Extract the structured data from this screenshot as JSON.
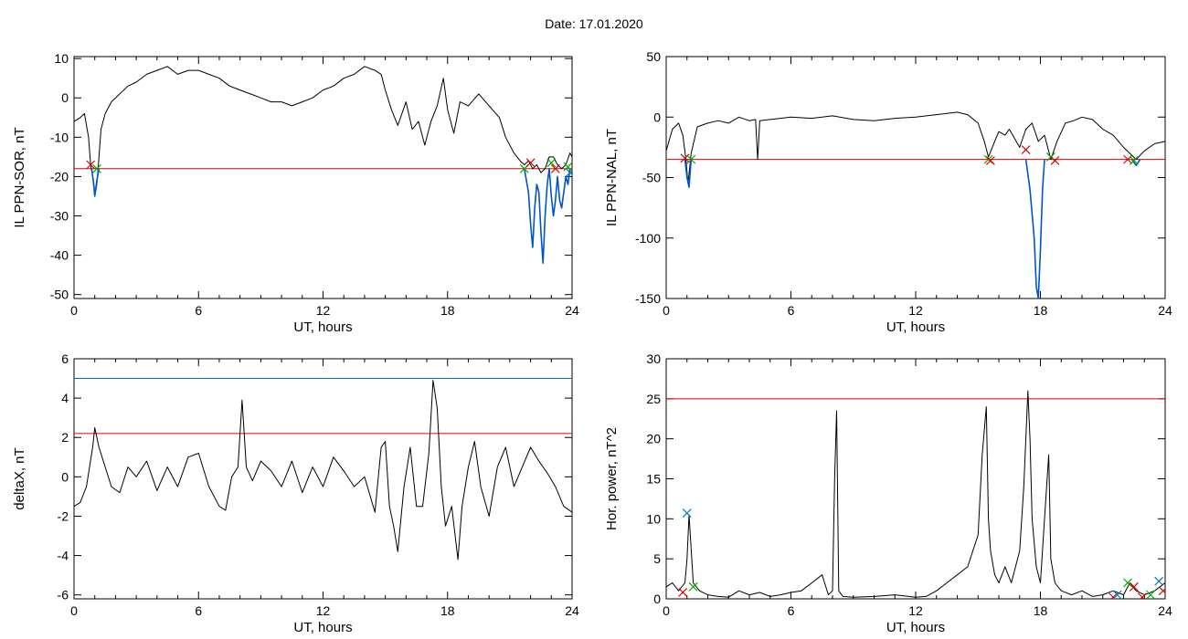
{
  "page": {
    "title": "Date:  17.01.2020"
  },
  "colors": {
    "signal": "#000000",
    "threshold_red": "#dd0000",
    "threshold_blue": "#0066cc",
    "segment_blue": "#0055cc",
    "marker_red": "#dd0000",
    "marker_green": "#00aa00",
    "marker_blue": "#0077cc"
  },
  "chart_data": [
    {
      "type": "line",
      "xlabel": "UT, hours",
      "ylabel": "IL PPN-SOR, nT",
      "xlim": [
        0,
        24
      ],
      "ylim": [
        -51,
        10.5
      ],
      "xticks": [
        "0",
        "6",
        "12",
        "18",
        "24"
      ],
      "yticks": [
        "10",
        "0",
        "-10",
        "-20",
        "-30",
        "-40",
        "-50"
      ],
      "ytick_values": [
        10,
        0,
        -10,
        -20,
        -30,
        -40,
        -50
      ],
      "thresholds": [
        {
          "y": -18,
          "color": "red"
        }
      ],
      "series": [
        {
          "color": "black",
          "x": [
            0,
            0.3,
            0.5,
            0.7,
            0.8,
            0.9,
            1.0,
            1.1,
            1.2,
            1.3,
            1.5,
            1.8,
            2.2,
            2.6,
            3.0,
            3.5,
            4.0,
            4.5,
            5.0,
            5.5,
            6.0,
            6.5,
            7.0,
            7.5,
            8.0,
            8.5,
            9.0,
            9.5,
            10.0,
            10.5,
            11.0,
            11.5,
            12.0,
            12.5,
            13.0,
            13.5,
            14.0,
            14.5,
            14.8,
            15.0,
            15.3,
            15.6,
            16.0,
            16.3,
            16.6,
            16.9,
            17.2,
            17.5,
            17.8,
            18.0,
            18.3,
            18.6,
            19.0,
            19.5,
            20.0,
            20.5,
            20.8,
            21.2,
            21.5,
            21.7,
            21.9,
            22.1,
            22.3,
            22.5,
            22.7,
            22.9,
            23.1,
            23.3,
            23.5,
            23.7,
            23.9,
            24.0
          ],
          "y": [
            -6,
            -5,
            -4,
            -10,
            -17,
            -20,
            -25,
            -22,
            -15,
            -8,
            -4,
            -1,
            1,
            3,
            4,
            6,
            7,
            8,
            6,
            7,
            7,
            6,
            5,
            3,
            2,
            1,
            0,
            -1,
            -1,
            -2,
            -1,
            0,
            2,
            3,
            5,
            6,
            8,
            7,
            6,
            2,
            -3,
            -7,
            -1,
            -8,
            -6,
            -12,
            -6,
            -2,
            5,
            -3,
            -9,
            -1,
            -2,
            1,
            -2,
            -5,
            -10,
            -14,
            -16,
            -17,
            -16,
            -18,
            -17,
            -19,
            -18,
            -15,
            -15,
            -17,
            -18,
            -17,
            -14,
            -15
          ]
        },
        {
          "color": "blue",
          "x": [
            0.85,
            0.95,
            1.0,
            1.1,
            1.2
          ],
          "y": [
            -18,
            -22,
            -25,
            -21,
            -18
          ]
        },
        {
          "color": "blue",
          "x": [
            21.7,
            21.9,
            22.0,
            22.1,
            22.2,
            22.3,
            22.4,
            22.5,
            22.6,
            22.7,
            22.8,
            22.9,
            23.0,
            23.1,
            23.2,
            23.3,
            23.4,
            23.5,
            23.6,
            23.7,
            23.8,
            23.9
          ],
          "y": [
            -18,
            -24,
            -32,
            -38,
            -28,
            -22,
            -24,
            -34,
            -42,
            -30,
            -22,
            -18,
            -25,
            -30,
            -26,
            -20,
            -26,
            -28,
            -24,
            -20,
            -22,
            -18
          ]
        }
      ],
      "markers": [
        {
          "x": 0.8,
          "y": -17,
          "color": "red"
        },
        {
          "x": 1.1,
          "y": -18,
          "color": "green"
        },
        {
          "x": 21.7,
          "y": -18,
          "color": "green"
        },
        {
          "x": 22.0,
          "y": -16.5,
          "color": "red"
        },
        {
          "x": 23.0,
          "y": -16.5,
          "color": "green"
        },
        {
          "x": 23.2,
          "y": -18,
          "color": "red"
        },
        {
          "x": 23.8,
          "y": -17.5,
          "color": "green"
        },
        {
          "x": 23.9,
          "y": -19,
          "color": "blue"
        }
      ]
    },
    {
      "type": "line",
      "xlabel": "UT, hours",
      "ylabel": "IL PPN-NAL, nT",
      "xlim": [
        0,
        24
      ],
      "ylim": [
        -150,
        50
      ],
      "xticks": [
        "0",
        "6",
        "12",
        "18",
        "24"
      ],
      "yticks": [
        "50",
        "0",
        "-50",
        "-100",
        "-150"
      ],
      "ytick_values": [
        50,
        0,
        -50,
        -100,
        -150
      ],
      "thresholds": [
        {
          "y": -35,
          "color": "red"
        }
      ],
      "series": [
        {
          "color": "black",
          "x": [
            0,
            0.3,
            0.6,
            0.8,
            0.95,
            1.05,
            1.2,
            1.5,
            2.0,
            2.5,
            3.0,
            3.5,
            4.0,
            4.3,
            4.4,
            4.5,
            5.0,
            5.5,
            6.0,
            7.0,
            8.0,
            9.0,
            10.0,
            11.0,
            12.0,
            13.0,
            14.0,
            14.5,
            15.0,
            15.3,
            15.5,
            15.8,
            16.0,
            16.3,
            16.5,
            17.0,
            17.3,
            17.6,
            17.9,
            18.2,
            18.5,
            18.8,
            19.2,
            19.6,
            20.0,
            20.5,
            21.0,
            21.5,
            22.0,
            22.3,
            22.6,
            23.0,
            23.5,
            24.0
          ],
          "y": [
            -28,
            -10,
            -5,
            -15,
            -35,
            -55,
            -30,
            -8,
            -5,
            -3,
            -5,
            0,
            -3,
            -2,
            -35,
            -3,
            -2,
            -1,
            0,
            -1,
            1,
            -2,
            -3,
            -1,
            0,
            2,
            4,
            2,
            -5,
            -20,
            -33,
            -20,
            -12,
            -15,
            -10,
            -25,
            -10,
            -5,
            -20,
            -15,
            -35,
            -20,
            -5,
            -3,
            0,
            -2,
            -10,
            -15,
            -25,
            -30,
            -35,
            -28,
            -22,
            -20
          ]
        },
        {
          "color": "blue",
          "x": [
            17.3,
            17.5,
            17.7,
            17.8,
            17.9,
            18.0,
            18.1,
            18.2
          ],
          "y": [
            -35,
            -60,
            -100,
            -140,
            -150,
            -110,
            -60,
            -35
          ]
        },
        {
          "color": "blue",
          "x": [
            0.9,
            1.0,
            1.1,
            1.2
          ],
          "y": [
            -35,
            -50,
            -58,
            -35
          ]
        },
        {
          "color": "blue",
          "x": [
            22.4,
            22.6,
            22.8
          ],
          "y": [
            -35,
            -40,
            -35
          ]
        }
      ],
      "markers": [
        {
          "x": 0.9,
          "y": -34,
          "color": "red"
        },
        {
          "x": 1.2,
          "y": -35,
          "color": "green"
        },
        {
          "x": 15.5,
          "y": -35,
          "color": "green"
        },
        {
          "x": 15.6,
          "y": -36,
          "color": "red"
        },
        {
          "x": 17.3,
          "y": -27,
          "color": "red"
        },
        {
          "x": 18.5,
          "y": -33,
          "color": "green"
        },
        {
          "x": 18.7,
          "y": -36,
          "color": "red"
        },
        {
          "x": 22.2,
          "y": -35,
          "color": "red"
        },
        {
          "x": 22.5,
          "y": -36,
          "color": "green"
        }
      ]
    },
    {
      "type": "line",
      "xlabel": "UT, hours",
      "ylabel": "deltaX, nT",
      "xlim": [
        0,
        24
      ],
      "ylim": [
        -6.2,
        6
      ],
      "xticks": [
        "0",
        "6",
        "12",
        "18",
        "24"
      ],
      "yticks": [
        "6",
        "4",
        "2",
        "0",
        "-2",
        "-4",
        "-6"
      ],
      "ytick_values": [
        6,
        4,
        2,
        0,
        -2,
        -4,
        -6
      ],
      "thresholds": [
        {
          "y": 5.0,
          "color": "blue"
        },
        {
          "y": 2.2,
          "color": "red"
        }
      ],
      "series": [
        {
          "color": "black",
          "x": [
            0,
            0.3,
            0.6,
            0.9,
            1.0,
            1.2,
            1.5,
            1.8,
            2.2,
            2.6,
            3.0,
            3.5,
            4.0,
            4.5,
            5.0,
            5.5,
            6.0,
            6.5,
            7.0,
            7.3,
            7.6,
            7.9,
            8.1,
            8.3,
            8.6,
            9.0,
            9.5,
            10.0,
            10.5,
            11.0,
            11.5,
            12.0,
            12.5,
            13.0,
            13.5,
            14.0,
            14.5,
            14.8,
            15.0,
            15.2,
            15.4,
            15.6,
            15.9,
            16.2,
            16.5,
            16.8,
            17.1,
            17.3,
            17.5,
            17.7,
            17.9,
            18.2,
            18.5,
            18.7,
            19.0,
            19.3,
            19.6,
            20.0,
            20.4,
            20.8,
            21.2,
            21.6,
            22.0,
            22.4,
            22.8,
            23.2,
            23.6,
            24.0
          ],
          "y": [
            -1.5,
            -1.3,
            -0.5,
            1.5,
            2.5,
            1.5,
            0.5,
            -0.5,
            -0.8,
            0.5,
            0,
            0.8,
            -0.7,
            0.5,
            -0.5,
            1,
            1.2,
            -0.5,
            -1.5,
            -1.7,
            0,
            0.5,
            3.9,
            0.5,
            -0.2,
            0.8,
            0.3,
            -0.5,
            0.8,
            -0.8,
            0.5,
            -0.5,
            1,
            0.3,
            -0.5,
            0,
            -1.8,
            1.5,
            1.8,
            -1.5,
            -2.5,
            -3.8,
            -0.5,
            1.5,
            -1.5,
            -1.5,
            1.2,
            4.9,
            3.5,
            -0.5,
            -2.5,
            -1.5,
            -4.2,
            -1.5,
            0.5,
            1.8,
            -0.5,
            -2,
            0.5,
            1.5,
            -0.5,
            0.5,
            1.5,
            0.8,
            0.2,
            -0.5,
            -1.5,
            -1.8
          ]
        }
      ],
      "markers": []
    },
    {
      "type": "line",
      "xlabel": "UT, hours",
      "ylabel": "Hor. power, nT^2",
      "xlim": [
        0,
        24
      ],
      "ylim": [
        0,
        30
      ],
      "xticks": [
        "0",
        "6",
        "12",
        "18",
        "24"
      ],
      "yticks": [
        "30",
        "25",
        "20",
        "15",
        "10",
        "5",
        "0"
      ],
      "ytick_values": [
        30,
        25,
        20,
        15,
        10,
        5,
        0
      ],
      "thresholds": [
        {
          "y": 25,
          "color": "red"
        }
      ],
      "series": [
        {
          "color": "black",
          "x": [
            0,
            0.3,
            0.6,
            0.9,
            1.0,
            1.1,
            1.3,
            1.6,
            2.0,
            2.5,
            3.0,
            3.5,
            4.0,
            4.5,
            5.0,
            5.5,
            6.0,
            6.5,
            7.0,
            7.5,
            7.8,
            8.0,
            8.1,
            8.2,
            8.3,
            8.5,
            9.0,
            10.0,
            11.0,
            12.0,
            12.5,
            13.0,
            13.5,
            14.0,
            14.5,
            15.0,
            15.2,
            15.4,
            15.5,
            15.6,
            15.8,
            16.0,
            16.3,
            16.6,
            17.0,
            17.2,
            17.4,
            17.5,
            17.6,
            17.8,
            18.0,
            18.2,
            18.4,
            18.5,
            18.7,
            19.0,
            19.5,
            20.0,
            20.5,
            21.0,
            21.5,
            22.0,
            22.3,
            22.6,
            23.0,
            23.5,
            24.0
          ],
          "y": [
            1.5,
            2,
            1,
            2,
            5,
            10.5,
            2,
            1,
            0.5,
            0.3,
            0.2,
            1,
            0.5,
            0.8,
            0.3,
            0.5,
            0.8,
            1,
            2,
            3,
            0.5,
            1,
            15,
            23.5,
            1,
            0.3,
            0.2,
            0.3,
            0.5,
            0.2,
            0.3,
            1,
            2,
            3,
            4,
            8,
            18,
            24,
            10,
            6,
            3,
            2,
            4,
            2,
            6,
            14,
            26,
            20,
            10,
            4,
            2,
            10,
            18,
            5,
            2,
            1,
            0.5,
            1,
            0.3,
            0.5,
            1,
            0.5,
            2,
            1,
            0.5,
            1,
            2
          ]
        }
      ],
      "markers": [
        {
          "x": 0.8,
          "y": 0.8,
          "color": "red"
        },
        {
          "x": 1.0,
          "y": 10.7,
          "color": "blue"
        },
        {
          "x": 1.3,
          "y": 1.5,
          "color": "green"
        },
        {
          "x": 21.5,
          "y": 0.2,
          "color": "red"
        },
        {
          "x": 21.7,
          "y": 0.5,
          "color": "blue"
        },
        {
          "x": 22.2,
          "y": 2.0,
          "color": "green"
        },
        {
          "x": 22.5,
          "y": 1.5,
          "color": "red"
        },
        {
          "x": 22.9,
          "y": 0.2,
          "color": "red"
        },
        {
          "x": 23.3,
          "y": 0.5,
          "color": "green"
        },
        {
          "x": 23.7,
          "y": 2.2,
          "color": "blue"
        },
        {
          "x": 23.9,
          "y": 1.0,
          "color": "red"
        }
      ]
    }
  ]
}
